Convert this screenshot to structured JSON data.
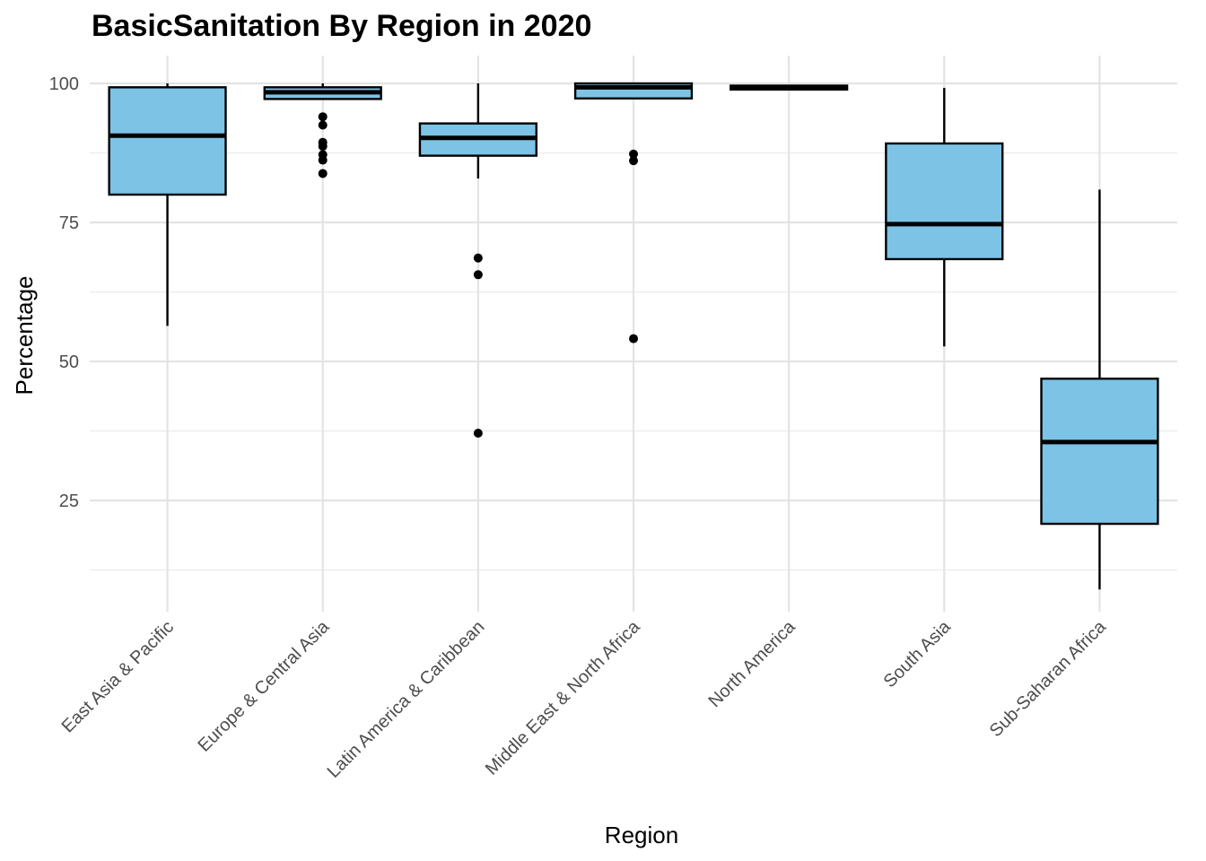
{
  "chart_data": {
    "type": "boxplot",
    "title": "BasicSanitation By Region in 2020",
    "xlabel": "Region",
    "ylabel": "Percentage",
    "ylim": [
      5,
      105
    ],
    "yticks": [
      25,
      50,
      75,
      100
    ],
    "grid": true,
    "box_fill": "#7cc3e6",
    "categories": [
      "East Asia & Pacific",
      "Europe & Central Asia",
      "Latin America & Caribbean",
      "Middle East & North Africa",
      "North America",
      "South Asia",
      "Sub-Saharan Africa"
    ],
    "boxes": [
      {
        "low": 56.4,
        "q1": 80.0,
        "median": 90.6,
        "q3": 99.3,
        "high": 100.0,
        "outliers": []
      },
      {
        "low": 97.2,
        "q1": 97.2,
        "median": 98.4,
        "q3": 99.3,
        "high": 100.0,
        "outliers": [
          94.0,
          92.5,
          89.4,
          88.7,
          87.2,
          86.2,
          83.8
        ]
      },
      {
        "low": 82.9,
        "q1": 87.0,
        "median": 90.2,
        "q3": 92.8,
        "high": 100.0,
        "outliers": [
          68.6,
          65.6,
          37.1
        ]
      },
      {
        "low": 97.3,
        "q1": 97.3,
        "median": 99.3,
        "q3": 100.0,
        "high": 100.0,
        "outliers": [
          87.3,
          86.1,
          54.1
        ]
      },
      {
        "low": 98.9,
        "q1": 98.9,
        "median": 99.3,
        "q3": 99.6,
        "high": 99.6,
        "outliers": []
      },
      {
        "low": 52.7,
        "q1": 68.4,
        "median": 74.7,
        "q3": 89.2,
        "high": 99.2,
        "outliers": []
      },
      {
        "low": 9.0,
        "q1": 20.8,
        "median": 35.5,
        "q3": 46.9,
        "high": 80.9,
        "outliers": []
      }
    ]
  }
}
